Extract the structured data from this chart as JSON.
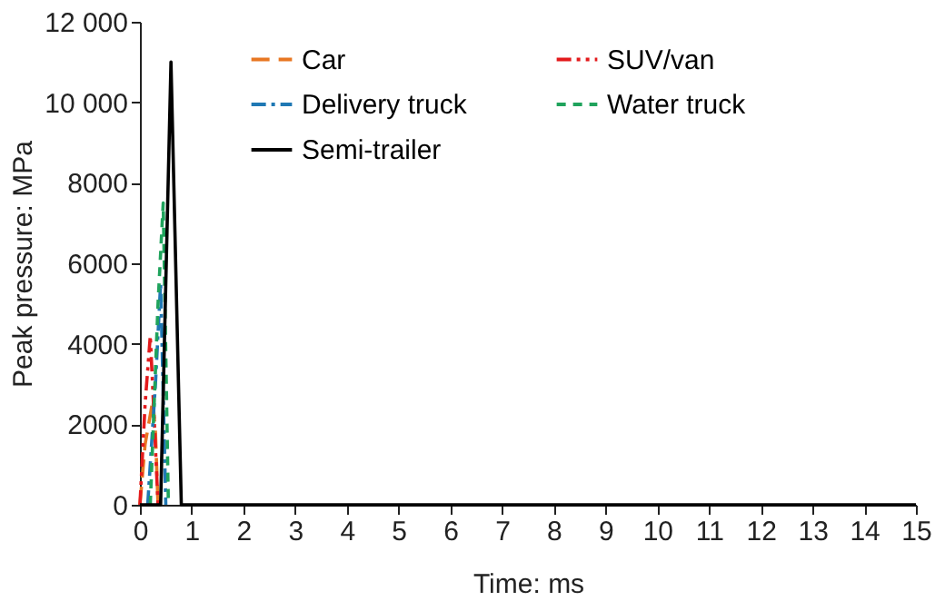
{
  "chart_data": {
    "type": "line",
    "xlabel": "Time: ms",
    "ylabel": "Peak pressure: MPa",
    "xlim": [
      0,
      15
    ],
    "xticks": [
      0,
      1,
      2,
      3,
      4,
      5,
      6,
      7,
      8,
      9,
      10,
      11,
      12,
      13,
      14,
      15
    ],
    "ylim": [
      0,
      12000
    ],
    "yticks": [
      0,
      2000,
      4000,
      6000,
      {
        "value": 10000,
        "label": "10 000"
      },
      8000,
      {
        "value": 12000,
        "label": "12 000"
      }
    ],
    "grid": false,
    "legend": "top",
    "marker": "none",
    "series": [
      {
        "name": "Car",
        "color": "#e87722",
        "line_style": "dashed",
        "x": [
          0,
          0.1,
          0.25,
          0.3,
          0.35
        ],
        "values": [
          0,
          1500,
          2600,
          1800,
          0
        ]
      },
      {
        "name": "SUV/van",
        "color": "#e31a1c",
        "line_style": "dashdotdot",
        "x": [
          0,
          0.1,
          0.2,
          0.28,
          0.35
        ],
        "values": [
          0,
          2500,
          4200,
          2000,
          0
        ]
      },
      {
        "name": "Delivery truck",
        "color": "#1f78b4",
        "line_style": "dashdot",
        "x": [
          0.15,
          0.3,
          0.4,
          0.5
        ],
        "values": [
          0,
          3000,
          5500,
          0
        ]
      },
      {
        "name": "Water truck",
        "color": "#1fa35c",
        "line_style": "shortdash",
        "x": [
          0.2,
          0.35,
          0.45,
          0.55
        ],
        "values": [
          0,
          5000,
          7500,
          0
        ]
      },
      {
        "name": "Semi-trailer",
        "color": "#000000",
        "line_style": "solid",
        "x": [
          0,
          0.4,
          0.6,
          0.8,
          15
        ],
        "values": [
          0,
          0,
          11000,
          0,
          0
        ]
      }
    ]
  }
}
